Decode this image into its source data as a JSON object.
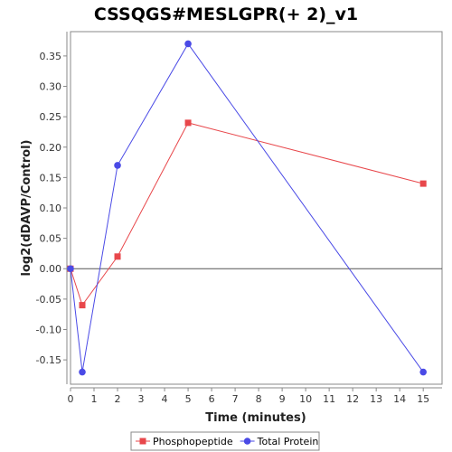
{
  "chart_data": {
    "type": "line",
    "title": "CSSQGS#MESLGPR(+ 2)_v1",
    "xlabel": "Time (minutes)",
    "ylabel": "log2(dDAVP/Control)",
    "xlim": [
      0,
      15.8
    ],
    "ylim": [
      -0.19,
      0.39
    ],
    "x_ticks": [
      0,
      1,
      2,
      3,
      4,
      5,
      6,
      7,
      8,
      9,
      10,
      11,
      12,
      13,
      14,
      15
    ],
    "y_ticks": [
      -0.15,
      -0.1,
      -0.05,
      0.0,
      0.05,
      0.1,
      0.15,
      0.2,
      0.25,
      0.3,
      0.35
    ],
    "y_tick_labels": [
      "-0.15",
      "-0.10",
      "-0.05",
      "0.00",
      "0.05",
      "0.10",
      "0.15",
      "0.20",
      "0.25",
      "0.30",
      "0.35"
    ],
    "grid": false,
    "zero_line": true,
    "legend_position": "bottom",
    "series": [
      {
        "name": "Phosphopeptide",
        "color": "#e8474b",
        "marker": "square",
        "x": [
          0,
          0.5,
          2,
          5,
          15
        ],
        "y": [
          0.0,
          -0.06,
          0.02,
          0.24,
          0.14
        ]
      },
      {
        "name": "Total Protein",
        "color": "#4a4ae6",
        "marker": "circle",
        "x": [
          0,
          0.5,
          2,
          5,
          15
        ],
        "y": [
          0.0,
          -0.17,
          0.17,
          0.37,
          -0.17
        ]
      }
    ]
  }
}
